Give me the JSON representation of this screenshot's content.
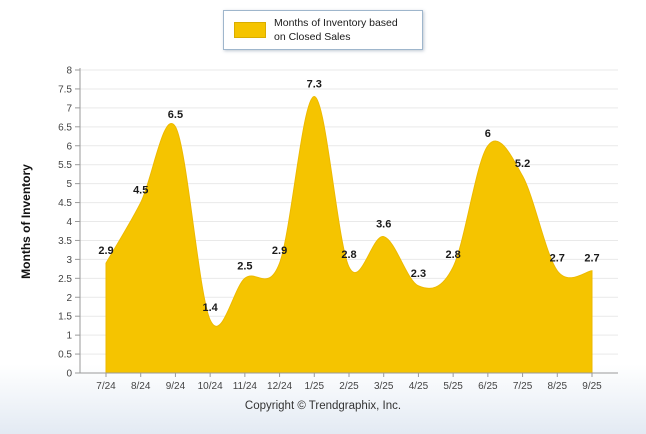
{
  "legend": {
    "label": "Months of Inventory based on Closed Sales",
    "swatch_color": "#F5C400"
  },
  "footer": {
    "copyright": "Copyright © Trendgraphix, Inc."
  },
  "chart_data": {
    "type": "area",
    "title": "",
    "xlabel": "",
    "ylabel": "Months of Inventory",
    "categories": [
      "7/24",
      "8/24",
      "9/24",
      "10/24",
      "11/24",
      "12/24",
      "1/25",
      "2/25",
      "3/25",
      "4/25",
      "5/25",
      "6/25",
      "7/25",
      "8/25",
      "9/25"
    ],
    "values": [
      2.9,
      4.5,
      6.5,
      1.4,
      2.5,
      2.9,
      7.3,
      2.8,
      3.6,
      2.3,
      2.8,
      6,
      5.2,
      2.7,
      2.7
    ],
    "ylim": [
      0,
      8
    ],
    "ytick_step": 0.5,
    "grid": "horizontal",
    "legend_entries": [
      "Months of Inventory based on Closed Sales"
    ],
    "legend_position": "top",
    "area_color": "#F5C400",
    "area_stroke_color": "#EDB900",
    "value_label_color": "#1a1a1a",
    "axis_color": "#9a9a9a",
    "grid_color": "#e9e9e9",
    "tick_label_color": "#444444"
  }
}
